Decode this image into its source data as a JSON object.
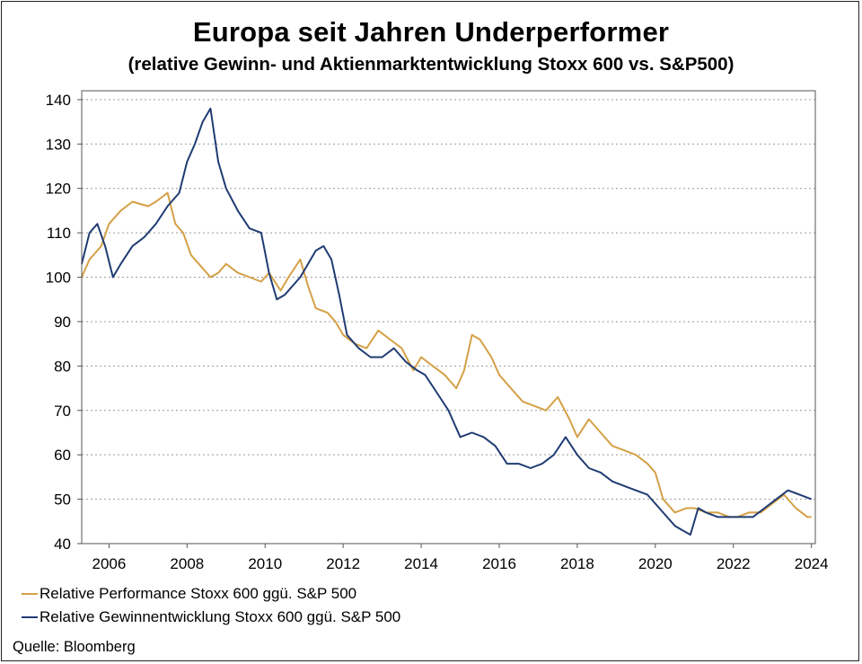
{
  "chart_data": {
    "type": "line",
    "title": "Europa seit Jahren Underperformer",
    "subtitle": "(relative Gewinn- und Aktienmarktentwicklung Stoxx 600 vs. S&P500)",
    "xlabel": "",
    "ylabel": "",
    "xlim": [
      2005.3,
      2024.1
    ],
    "ylim": [
      40,
      142
    ],
    "xticks": [
      "2006",
      "2008",
      "2010",
      "2012",
      "2014",
      "2016",
      "2018",
      "2020",
      "2022",
      "2024"
    ],
    "yticks": [
      "40",
      "50",
      "60",
      "70",
      "80",
      "90",
      "100",
      "110",
      "120",
      "130",
      "140"
    ],
    "grid": true,
    "legend_position": "bottom-left",
    "series": [
      {
        "name": "Relative Performance Stoxx 600 ggü. S&P 500",
        "color": "#D4A046",
        "x": [
          2005.3,
          2005.5,
          2005.8,
          2006.0,
          2006.3,
          2006.6,
          2007.0,
          2007.2,
          2007.5,
          2007.7,
          2007.9,
          2008.1,
          2008.3,
          2008.6,
          2008.8,
          2009.0,
          2009.3,
          2009.6,
          2009.9,
          2010.1,
          2010.4,
          2010.6,
          2010.9,
          2011.1,
          2011.3,
          2011.6,
          2011.8,
          2012.0,
          2012.3,
          2012.6,
          2012.9,
          2013.2,
          2013.5,
          2013.8,
          2014.0,
          2014.3,
          2014.6,
          2014.9,
          2015.1,
          2015.3,
          2015.5,
          2015.8,
          2016.0,
          2016.3,
          2016.6,
          2016.9,
          2017.2,
          2017.5,
          2017.8,
          2018.0,
          2018.3,
          2018.6,
          2018.9,
          2019.2,
          2019.5,
          2019.8,
          2020.0,
          2020.2,
          2020.5,
          2020.8,
          2021.0,
          2021.3,
          2021.6,
          2021.9,
          2022.1,
          2022.4,
          2022.7,
          2023.0,
          2023.3,
          2023.6,
          2023.9,
          2024.0
        ],
        "values": [
          100,
          104,
          107,
          112,
          115,
          117,
          116,
          117,
          119,
          112,
          110,
          105,
          103,
          100,
          101,
          103,
          101,
          100,
          99,
          101,
          97,
          100,
          104,
          98,
          93,
          92,
          90,
          87,
          85,
          84,
          88,
          86,
          84,
          79,
          82,
          80,
          78,
          75,
          79,
          87,
          86,
          82,
          78,
          75,
          72,
          71,
          70,
          73,
          68,
          64,
          68,
          65,
          62,
          61,
          60,
          58,
          56,
          50,
          47,
          48,
          48,
          47,
          47,
          46,
          46,
          47,
          47,
          49,
          51,
          48,
          46,
          46
        ]
      },
      {
        "name": "Relative Gewinnentwicklung Stoxx 600 ggü. S&P 500",
        "color": "#1F3C73",
        "x": [
          2005.3,
          2005.5,
          2005.7,
          2005.9,
          2006.1,
          2006.3,
          2006.6,
          2006.9,
          2007.2,
          2007.5,
          2007.8,
          2008.0,
          2008.2,
          2008.4,
          2008.6,
          2008.8,
          2009.0,
          2009.3,
          2009.6,
          2009.9,
          2010.1,
          2010.3,
          2010.5,
          2010.7,
          2010.9,
          2011.1,
          2011.3,
          2011.5,
          2011.7,
          2011.9,
          2012.1,
          2012.4,
          2012.7,
          2013.0,
          2013.3,
          2013.6,
          2013.9,
          2014.1,
          2014.4,
          2014.7,
          2015.0,
          2015.3,
          2015.6,
          2015.9,
          2016.2,
          2016.5,
          2016.8,
          2017.1,
          2017.4,
          2017.7,
          2018.0,
          2018.3,
          2018.6,
          2018.9,
          2019.2,
          2019.5,
          2019.8,
          2020.0,
          2020.2,
          2020.5,
          2020.7,
          2020.9,
          2021.1,
          2021.3,
          2021.6,
          2021.9,
          2022.2,
          2022.5,
          2022.8,
          2023.1,
          2023.4,
          2023.7,
          2024.0
        ],
        "values": [
          103,
          110,
          112,
          107,
          100,
          103,
          107,
          109,
          112,
          116,
          119,
          126,
          130,
          135,
          138,
          126,
          120,
          115,
          111,
          110,
          101,
          95,
          96,
          98,
          100,
          103,
          106,
          107,
          104,
          96,
          87,
          84,
          82,
          82,
          84,
          81,
          79,
          78,
          74,
          70,
          64,
          65,
          64,
          62,
          58,
          58,
          57,
          58,
          60,
          64,
          60,
          57,
          56,
          54,
          53,
          52,
          51,
          49,
          47,
          44,
          43,
          42,
          48,
          47,
          46,
          46,
          46,
          46,
          48,
          50,
          52,
          51,
          50
        ]
      }
    ]
  },
  "source": "Quelle:  Bloomberg"
}
